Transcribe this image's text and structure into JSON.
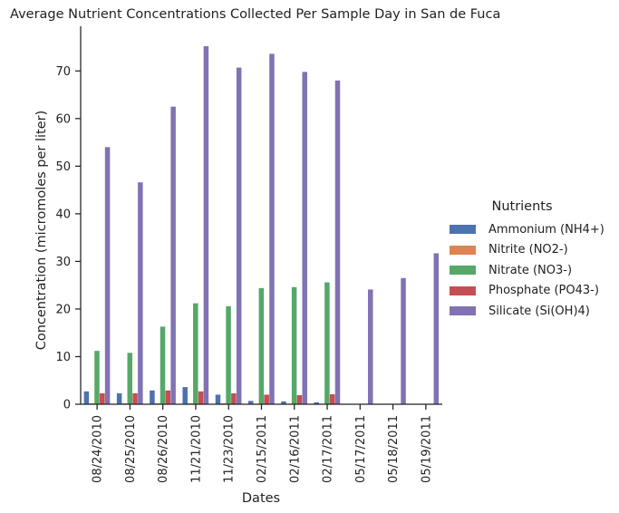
{
  "chart_data": {
    "type": "bar",
    "title": "Average Nutrient Concentrations Collected Per Sample Day in San de Fuca",
    "xlabel": "Dates",
    "ylabel": "Concentration (micromoles per liter)",
    "ylim": [
      0,
      79
    ],
    "yticks": [
      0,
      10,
      20,
      30,
      40,
      50,
      60,
      70
    ],
    "categories": [
      "08/24/2010",
      "08/25/2010",
      "08/26/2010",
      "11/21/2010",
      "11/23/2010",
      "02/15/2011",
      "02/16/2011",
      "02/17/2011",
      "05/17/2011",
      "05/18/2011",
      "05/19/2011"
    ],
    "legend_title": "Nutrients",
    "legend_position": "right",
    "grid": false,
    "series": [
      {
        "name": "Ammonium (NH4+)",
        "color": "#4c72b0",
        "values": [
          2.7,
          2.3,
          2.9,
          3.6,
          2.0,
          0.7,
          0.6,
          0.4,
          0,
          0,
          0
        ]
      },
      {
        "name": "Nitrite (NO2-)",
        "color": "#dd8452",
        "values": [
          0.2,
          0.2,
          0.2,
          0.2,
          0.2,
          0.1,
          0.1,
          0.1,
          0,
          0,
          0
        ]
      },
      {
        "name": "Nitrate (NO3-)",
        "color": "#55a868",
        "values": [
          11.2,
          10.8,
          16.3,
          21.2,
          20.6,
          24.4,
          24.6,
          25.6,
          0,
          0,
          0
        ]
      },
      {
        "name": "Phosphate (PO43-)",
        "color": "#c44e52",
        "values": [
          2.3,
          2.3,
          2.9,
          2.7,
          2.3,
          2.0,
          1.9,
          2.1,
          0,
          0,
          0
        ]
      },
      {
        "name": "Silicate (Si(OH)4)",
        "color": "#8172b3",
        "values": [
          54.0,
          46.6,
          62.5,
          75.2,
          70.7,
          73.6,
          69.8,
          68.0,
          24.1,
          26.5,
          31.7
        ]
      }
    ]
  }
}
